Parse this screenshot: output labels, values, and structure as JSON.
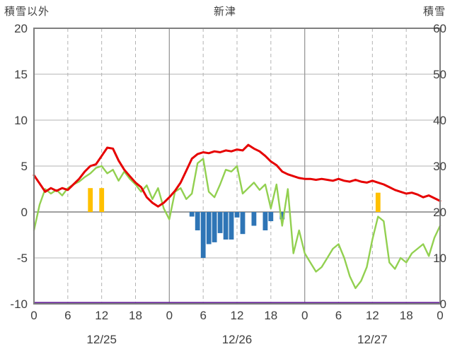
{
  "header": {
    "left_axis_title": "積雪以外",
    "title": "新津",
    "right_axis_title": "積雪"
  },
  "chart_data": {
    "type": "line",
    "title": "新津",
    "left_axis": {
      "label": "積雪以外",
      "min": -10,
      "max": 20,
      "ticks": [
        20,
        15,
        10,
        5,
        0,
        -5,
        -10
      ]
    },
    "right_axis": {
      "label": "積雪",
      "min": 0,
      "max": 60,
      "ticks": [
        60,
        50,
        40,
        30,
        20,
        10,
        0
      ]
    },
    "x_axis": {
      "hours_total": 72,
      "hour_tick_interval": 6,
      "hour_labels": [
        "0",
        "6",
        "12",
        "18",
        "0",
        "6",
        "12",
        "18",
        "0",
        "6",
        "12",
        "18",
        "0"
      ],
      "day_labels": [
        "12/25",
        "12/26",
        "12/27"
      ]
    },
    "grid": {
      "horizontal": true,
      "vertical_solid_every_hours": 24,
      "vertical_dashed_every_hours": 6
    },
    "colors": {
      "red_line": "#e60000",
      "green_line": "#92d050",
      "orange_bars": "#ffc000",
      "blue_bars": "#2e75b6",
      "purple_line": "#7030a0",
      "grid": "#b3b3b3",
      "zero_line": "#808080",
      "border": "#7f7f7f",
      "text": "#3f3f3f"
    },
    "series": [
      {
        "name": "orange-bars",
        "kind": "bar",
        "axis": "left",
        "color": "#ffc000",
        "bar_width_hours": 0.85,
        "points": [
          [
            10,
            2.6
          ],
          [
            12,
            2.6
          ],
          [
            61,
            2.1
          ]
        ]
      },
      {
        "name": "blue-bars",
        "kind": "bar",
        "axis": "left",
        "color": "#2e75b6",
        "bar_width_hours": 0.85,
        "points": [
          [
            28,
            -0.5
          ],
          [
            29,
            -2.0
          ],
          [
            30,
            -5.0
          ],
          [
            31,
            -3.5
          ],
          [
            32,
            -3.3
          ],
          [
            33,
            -2.3
          ],
          [
            34,
            -3.0
          ],
          [
            35,
            -3.0
          ],
          [
            36,
            -0.6
          ],
          [
            37,
            -2.4
          ],
          [
            39,
            -1.5
          ],
          [
            41,
            -2.0
          ],
          [
            42,
            -1.0
          ],
          [
            44,
            -0.8
          ]
        ]
      },
      {
        "name": "purple-flat-line",
        "kind": "line",
        "axis": "right",
        "color": "#7030a0",
        "stroke_width": 2.4,
        "constant": 0
      },
      {
        "name": "green-line",
        "kind": "line",
        "axis": "left",
        "color": "#92d050",
        "stroke_width": 2.4,
        "start_hour": 0,
        "step": 1,
        "values": [
          -2.0,
          0.8,
          2.5,
          2.0,
          2.4,
          1.8,
          2.6,
          3.0,
          3.3,
          3.8,
          4.2,
          4.8,
          5.0,
          4.2,
          4.6,
          3.4,
          4.4,
          3.6,
          3.0,
          2.2,
          2.9,
          1.4,
          2.6,
          0.4,
          -0.8,
          2.2,
          2.6,
          1.4,
          2.0,
          5.3,
          5.8,
          2.2,
          1.6,
          3.0,
          4.6,
          4.4,
          5.0,
          2.0,
          2.6,
          3.2,
          2.4,
          3.0,
          0.4,
          3.0,
          -1.5,
          2.5,
          -4.5,
          -2.0,
          -4.5,
          -5.5,
          -6.5,
          -6.0,
          -5.0,
          -4.0,
          -3.5,
          -5.0,
          -7.0,
          -8.3,
          -7.5,
          -6.0,
          -3.0,
          -0.5,
          -1.0,
          -5.5,
          -6.2,
          -5.0,
          -5.5,
          -4.5,
          -4.0,
          -3.5,
          -4.8,
          -2.8,
          -1.5
        ]
      },
      {
        "name": "red-line",
        "kind": "line",
        "axis": "left",
        "color": "#e60000",
        "stroke_width": 3,
        "start_hour": 0,
        "step": 1,
        "values": [
          4.0,
          3.1,
          2.2,
          2.6,
          2.3,
          2.6,
          2.4,
          3.0,
          3.6,
          4.4,
          5.0,
          5.2,
          6.1,
          7.0,
          6.9,
          5.6,
          4.6,
          3.9,
          3.2,
          2.7,
          1.6,
          1.0,
          0.6,
          1.0,
          1.6,
          2.3,
          3.2,
          4.5,
          5.8,
          6.3,
          6.5,
          6.4,
          6.6,
          6.5,
          6.7,
          6.6,
          6.8,
          6.7,
          7.3,
          6.9,
          6.6,
          6.1,
          5.5,
          5.1,
          4.4,
          4.1,
          3.9,
          3.7,
          3.6,
          3.6,
          3.5,
          3.6,
          3.5,
          3.4,
          3.6,
          3.4,
          3.3,
          3.5,
          3.3,
          3.2,
          3.4,
          3.2,
          3.0,
          2.7,
          2.4,
          2.2,
          2.0,
          2.1,
          1.9,
          1.6,
          1.8,
          1.5,
          1.2
        ]
      }
    ]
  }
}
